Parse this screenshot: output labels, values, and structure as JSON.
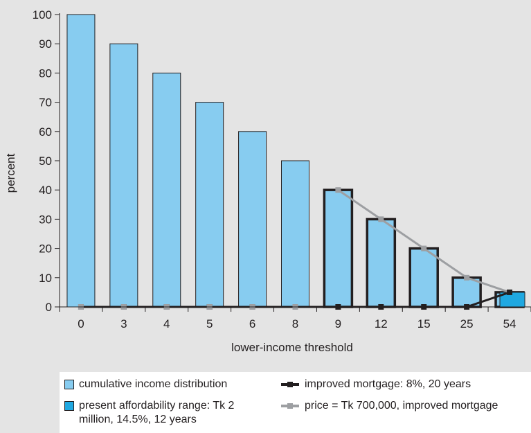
{
  "chart_data": {
    "type": "bar",
    "ylabel": "percent",
    "xlabel": "lower-income threshold",
    "ylim": [
      0,
      100
    ],
    "yticks": [
      0,
      10,
      20,
      30,
      40,
      50,
      60,
      70,
      80,
      90,
      100
    ],
    "categories": [
      "0",
      "3",
      "4",
      "5",
      "6",
      "8",
      "9",
      "12",
      "15",
      "25",
      "54"
    ],
    "series": [
      {
        "name": "cumulative income distribution",
        "kind": "bar",
        "color": "#87ccf0",
        "values": [
          100,
          90,
          80,
          70,
          60,
          50,
          40,
          30,
          20,
          10,
          5
        ]
      },
      {
        "name": "present affordability range: Tk 2 million, 14.5%, 12 years",
        "kind": "bar-highlight",
        "color": "#1fa8e1",
        "values": [
          null,
          null,
          null,
          null,
          null,
          null,
          null,
          null,
          null,
          null,
          5
        ]
      },
      {
        "name": "improved mortgage: 8%, 20 years",
        "kind": "line",
        "color": "#231f20",
        "values": [
          0,
          0,
          0,
          0,
          0,
          0,
          0,
          0,
          0,
          0,
          5
        ]
      },
      {
        "name": "price = Tk 700,000, improved mortgage",
        "kind": "line",
        "color": "#9d9fa2",
        "values": [
          0,
          0,
          0,
          0,
          0,
          0,
          40,
          30,
          20,
          10,
          5
        ]
      }
    ],
    "highlight_outline_from_index": 6,
    "grid": false,
    "legend_position": "bottom"
  },
  "legend": {
    "items": [
      {
        "label": "cumulative income distribution",
        "color": "#87ccf0",
        "type": "box"
      },
      {
        "label": "improved mortgage: 8%, 20 years",
        "color": "#231f20",
        "type": "line"
      },
      {
        "label": "present affordability range: Tk 2 million, 14.5%, 12 years",
        "color": "#1fa8e1",
        "type": "box"
      },
      {
        "label": "price = Tk 700,000, improved mortgage",
        "color": "#9d9fa2",
        "type": "line"
      }
    ]
  }
}
